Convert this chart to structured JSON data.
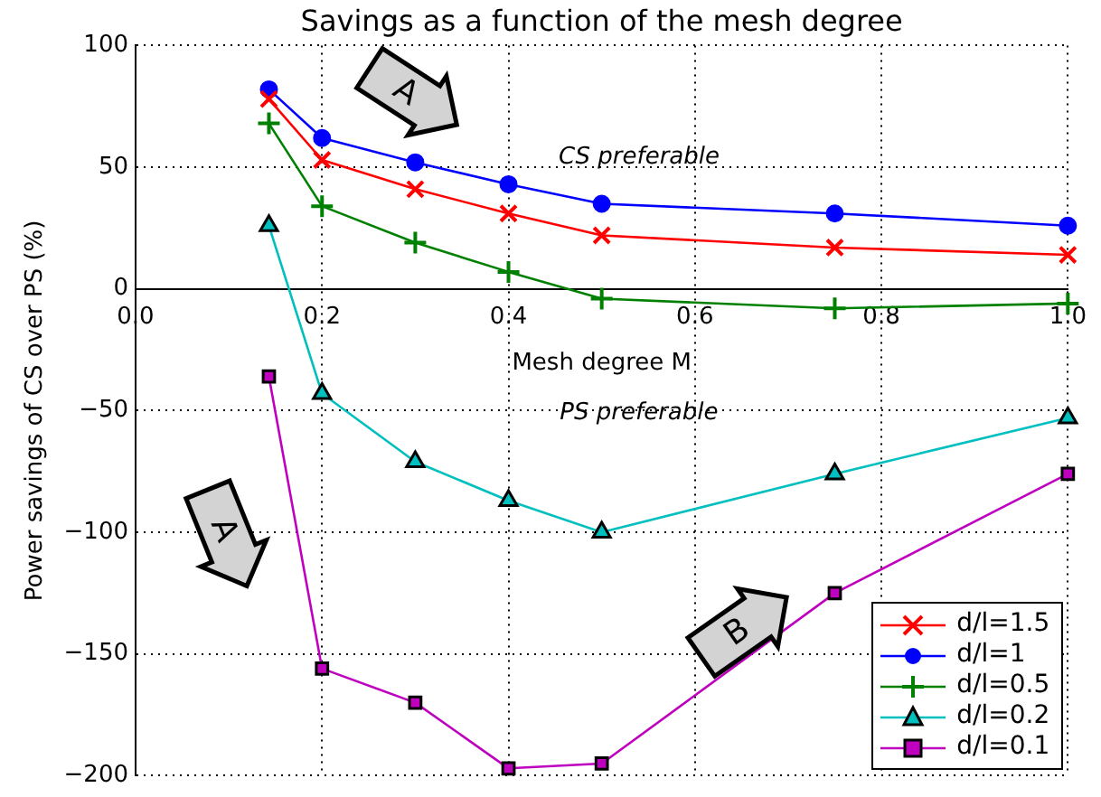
{
  "chart_data": {
    "type": "line",
    "title": "Savings as a function of the mesh degree",
    "xlabel": "Mesh degree M",
    "ylabel": "Power savings of CS over PS (%)",
    "x": [
      0.143,
      0.2,
      0.3,
      0.4,
      0.5,
      0.75,
      1.0
    ],
    "series": [
      {
        "name": "d/l=1.5",
        "color": "#ff0000",
        "marker": "x",
        "values": [
          78,
          53,
          41,
          31,
          22,
          17,
          14
        ]
      },
      {
        "name": "d/l=1",
        "color": "#0000ff",
        "marker": "circle",
        "values": [
          82,
          62,
          52,
          43,
          35,
          31,
          26
        ]
      },
      {
        "name": "d/l=0.5",
        "color": "#008000",
        "marker": "cross",
        "values": [
          68,
          34,
          19,
          7,
          -4,
          -8,
          -6
        ]
      },
      {
        "name": "d/l=0.2",
        "color": "#00bfbf",
        "marker": "triangle",
        "values": [
          26,
          -43,
          -71,
          -87,
          -100,
          -76,
          -53
        ]
      },
      {
        "name": "d/l=0.1",
        "color": "#bf00bf",
        "marker": "square",
        "values": [
          -36,
          -156,
          -170,
          -197,
          -195,
          -125,
          -76
        ]
      }
    ],
    "xlim": [
      0,
      1
    ],
    "xticks": [
      {
        "value": 0,
        "label": "0.0"
      },
      0.2,
      0.4,
      0.6,
      0.8,
      {
        "value": 1,
        "label": "1.0"
      }
    ],
    "ylim": [
      -200,
      100
    ],
    "yticks": [
      {
        "value": -200,
        "label": "−200"
      },
      {
        "value": -150,
        "label": "−150"
      },
      {
        "value": -100,
        "label": "−100"
      },
      {
        "value": -50,
        "label": "−50"
      },
      0,
      50,
      100
    ],
    "grid": true,
    "legend": "bottom right",
    "line_style": "solid",
    "annotations": [
      "CS preferable",
      "PS preferable",
      "A",
      "A",
      "B"
    ]
  }
}
